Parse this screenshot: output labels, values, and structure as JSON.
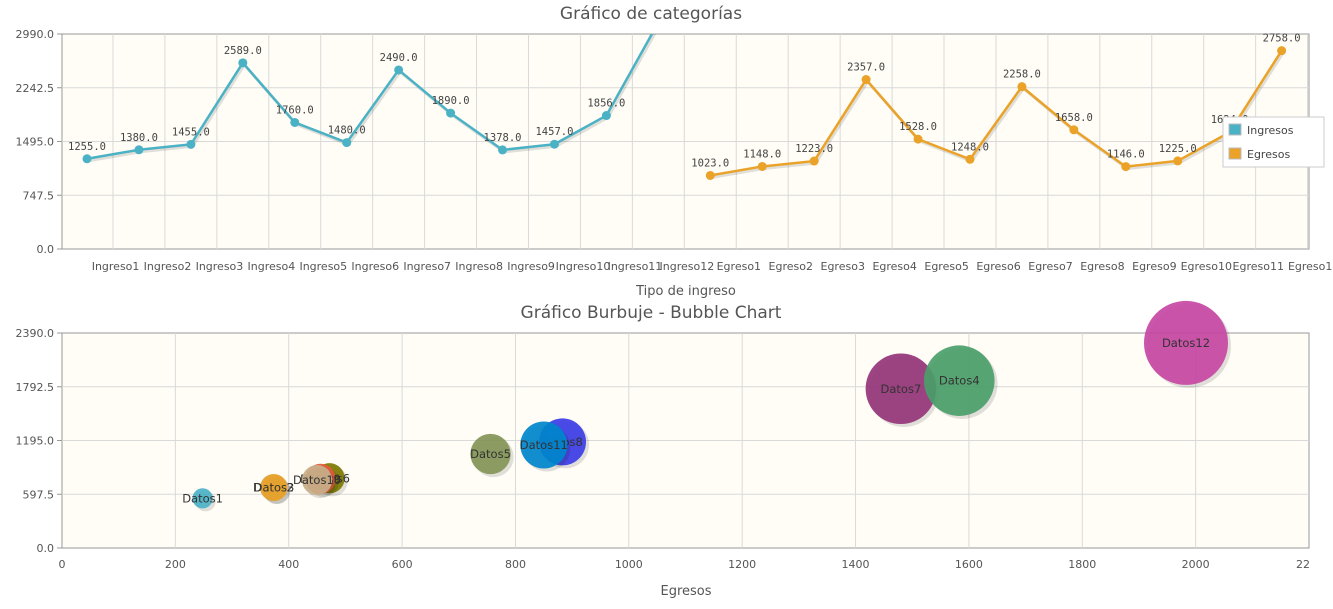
{
  "chart_data": [
    {
      "type": "line",
      "title": "Gráfico de categorías",
      "xlabel": "Tipo de ingreso",
      "ylabel": "",
      "ylim": [
        0,
        2990
      ],
      "yticks": [
        "0.0",
        "747.5",
        "1495.0",
        "2242.5",
        "2990.0"
      ],
      "categories": [
        "Ingreso1",
        "Ingreso2",
        "Ingreso3",
        "Ingreso4",
        "Ingreso5",
        "Ingreso6",
        "Ingreso7",
        "Ingreso8",
        "Ingreso9",
        "Ingreso10",
        "Ingreso11",
        "Ingreso12",
        "Egreso1",
        "Egreso2",
        "Egreso3",
        "Egreso4",
        "Egreso5",
        "Egreso6",
        "Egreso7",
        "Egreso8",
        "Egreso9",
        "Egreso10",
        "Egreso11",
        "Egreso1"
      ],
      "legend": "right",
      "grid": true,
      "series": [
        {
          "name": "Ingresos",
          "color": "#4bb2c5",
          "values": [
            1255.0,
            1380.0,
            1455.0,
            2589.0,
            1760.0,
            1480.0,
            2490.0,
            1890.0,
            1378.0,
            1457.0,
            1856.0,
            3150.0,
            null,
            null,
            null,
            null,
            null,
            null,
            null,
            null,
            null,
            null,
            null,
            null
          ],
          "labels": [
            "1255.0",
            "1380.0",
            "1455.0",
            "2589.0",
            "1760.0",
            "1480.0",
            "2490.0",
            "1890.0",
            "1378.0",
            "1457.0",
            "1856.0",
            ""
          ]
        },
        {
          "name": "Egresos",
          "color": "#eaa228",
          "values": [
            null,
            null,
            null,
            null,
            null,
            null,
            null,
            null,
            null,
            null,
            null,
            null,
            1023.0,
            1148.0,
            1223.0,
            2357.0,
            1528.0,
            1248.0,
            2258.0,
            1658.0,
            1146.0,
            1225.0,
            1624.0,
            2758.0
          ],
          "labels": [
            "1023.0",
            "1148.0",
            "1223.0",
            "2357.0",
            "1528.0",
            "1248.0",
            "2258.0",
            "1658.0",
            "1146.0",
            "1225.0",
            "1624.0",
            "2758.0"
          ]
        }
      ]
    },
    {
      "type": "scatter",
      "title": "Gráfico Burbuje - Bubble Chart",
      "xlabel": "Egresos",
      "ylabel": "",
      "xlim": [
        0,
        2200
      ],
      "ylim": [
        0,
        2390
      ],
      "xticks": [
        "0",
        "200",
        "400",
        "600",
        "800",
        "1000",
        "1200",
        "1400",
        "1600",
        "1800",
        "2000",
        "22"
      ],
      "yticks": [
        "0.0",
        "597.5",
        "1195.0",
        "1792.5",
        "2390.0"
      ],
      "grid": true,
      "points": [
        {
          "label": "Datos1",
          "x": 248,
          "y": 552,
          "r": 0.6,
          "color": "#4bb2c5"
        },
        {
          "label": "Datos2",
          "x": 373,
          "y": 672,
          "r": 0.8,
          "color": "#c5b47f"
        },
        {
          "label": "Datos3",
          "x": 374,
          "y": 672,
          "r": 0.8,
          "color": "#eaa228"
        },
        {
          "label": "Datos6",
          "x": 472,
          "y": 775,
          "r": 0.9,
          "color": "#7e7a00"
        },
        {
          "label": "Datos9",
          "x": 456,
          "y": 768,
          "r": 0.9,
          "color": "#e7583e"
        },
        {
          "label": "Datos10",
          "x": 450,
          "y": 755,
          "r": 0.9,
          "color": "#c8b08a"
        },
        {
          "label": "Datos5",
          "x": 756,
          "y": 1045,
          "r": 1.2,
          "color": "#839557"
        },
        {
          "label": "Datos8",
          "x": 883,
          "y": 1180,
          "r": 1.4,
          "color": "#3c3ce6"
        },
        {
          "label": "Datos11",
          "x": 850,
          "y": 1145,
          "r": 1.4,
          "color": "#0085cc"
        },
        {
          "label": "Datos7",
          "x": 1480,
          "y": 1770,
          "r": 2.1,
          "color": "#953579"
        },
        {
          "label": "Datos4",
          "x": 1583,
          "y": 1860,
          "r": 2.1,
          "color": "#4b9e6a"
        },
        {
          "label": "Datos12",
          "x": 1983,
          "y": 2280,
          "r": 2.5,
          "color": "#c747a3"
        }
      ]
    }
  ]
}
